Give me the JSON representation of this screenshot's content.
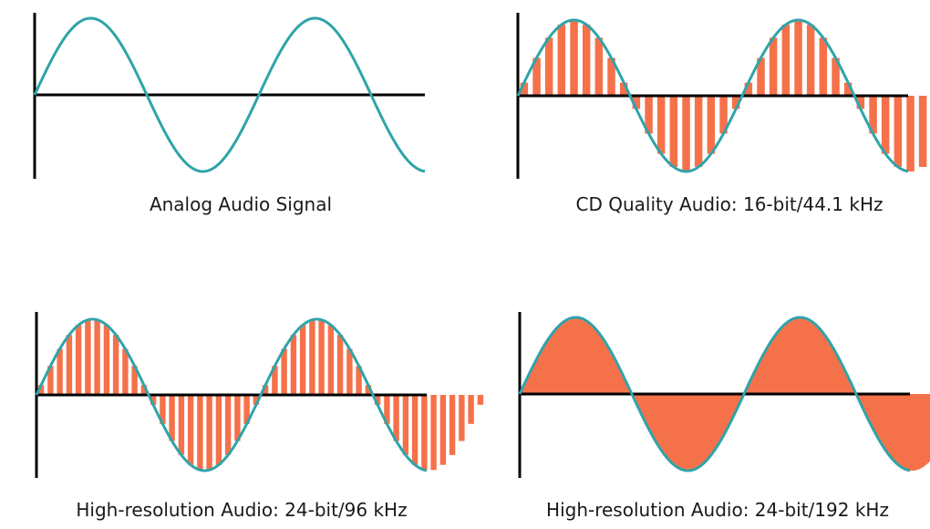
{
  "colors": {
    "wave": "#2fa4a9",
    "samples": "#f5714a",
    "axis": "#000000",
    "background": "#ffffff",
    "caption": "#1a1a1a"
  },
  "panels": [
    {
      "id": "analog",
      "caption": "Analog Audio Signal",
      "cycles": 2,
      "sampling": "none"
    },
    {
      "id": "cd",
      "caption": "CD Quality Audio: 16-bit/44.1 kHz",
      "cycles": 2,
      "sampling": "bars",
      "bars_per_cycle": 18
    },
    {
      "id": "hires96",
      "caption": "High-resolution Audio: 24-bit/96 kHz",
      "cycles": 2,
      "sampling": "bars",
      "bars_per_cycle": 24
    },
    {
      "id": "hires192",
      "caption": "High-resolution Audio: 24-bit/192 kHz",
      "cycles": 2,
      "sampling": "filled"
    }
  ]
}
